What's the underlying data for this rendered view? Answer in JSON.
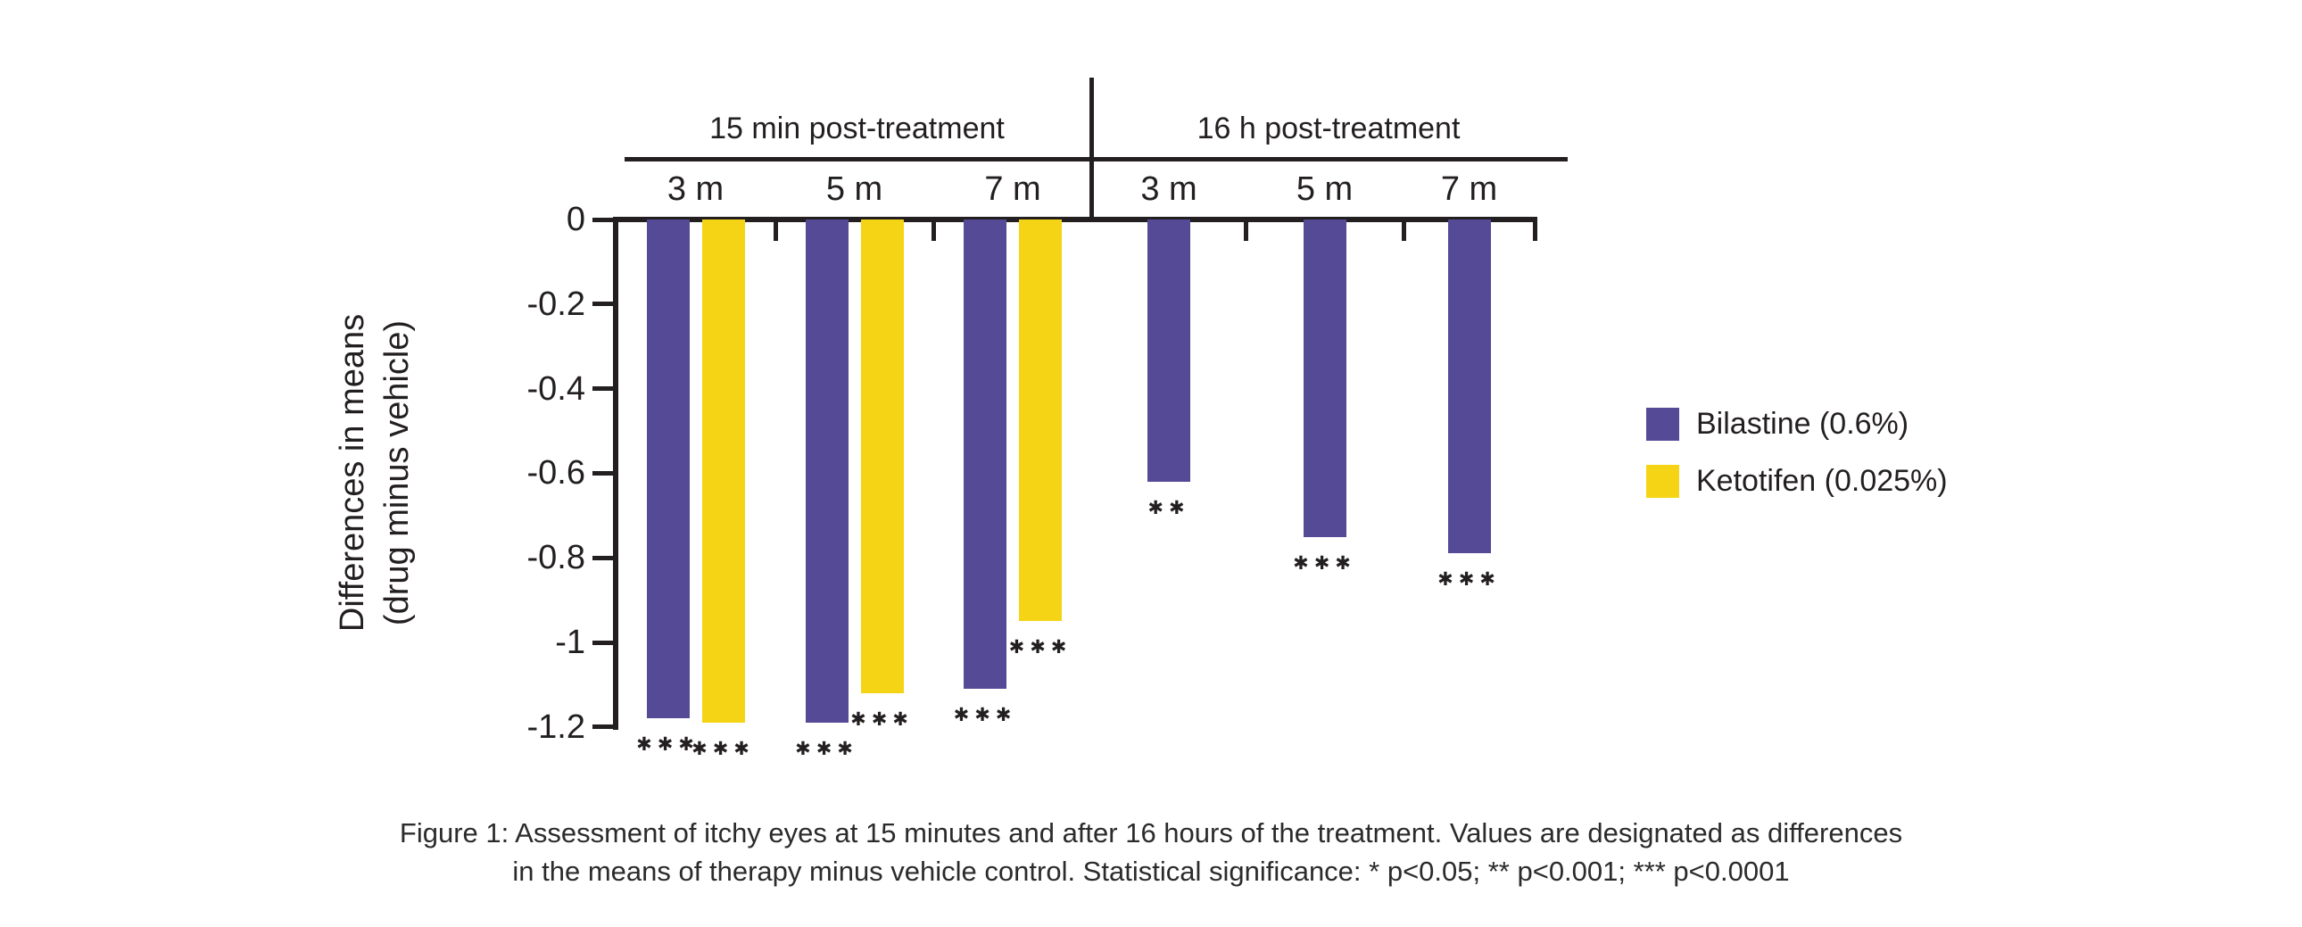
{
  "colors": {
    "bilastine": "#554A96",
    "ketotifen": "#F5D416",
    "axis": "#231f20",
    "text": "#2b2b2b"
  },
  "ylabel": {
    "line1": "Differences in means",
    "line2": "(drug minus vehicle)"
  },
  "legend": {
    "items": [
      {
        "label": "Bilastine (0.6%)",
        "color_key": "bilastine"
      },
      {
        "label": "Ketotifen (0.025%)",
        "color_key": "ketotifen"
      }
    ]
  },
  "caption": {
    "line1": "Figure 1: Assessment of itchy eyes at 15 minutes and after 16 hours of the treatment. Values are designated as differences",
    "line2": "in the means of therapy minus vehicle control. Statistical significance: * p<0.05; ** p<0.001; *** p<0.0001"
  },
  "chart_data": {
    "type": "bar",
    "title": "",
    "ylabel": "Differences in means (drug minus vehicle)",
    "ylim": [
      0,
      -1.2
    ],
    "yticks": [
      0,
      -0.2,
      -0.4,
      -0.6,
      -0.8,
      -1,
      -1.2
    ],
    "ytick_labels": [
      "0",
      "-0.2",
      "-0.4",
      "-0.6",
      "-0.8",
      "-1",
      "-1.2"
    ],
    "grid": false,
    "legend_position": "right",
    "groups": [
      {
        "label": "15 min post-treatment",
        "categories": [
          "3 m",
          "5 m",
          "7 m"
        ],
        "series": [
          {
            "name": "Bilastine (0.6%)",
            "color_key": "bilastine",
            "values": [
              -1.18,
              -1.19,
              -1.11
            ],
            "significance": [
              "***",
              "***",
              "***"
            ]
          },
          {
            "name": "Ketotifen (0.025%)",
            "color_key": "ketotifen",
            "values": [
              -1.19,
              -1.12,
              -0.95
            ],
            "significance": [
              "***",
              "***",
              "***"
            ]
          }
        ]
      },
      {
        "label": "16 h post-treatment",
        "categories": [
          "3 m",
          "5 m",
          "7 m"
        ],
        "series": [
          {
            "name": "Bilastine (0.6%)",
            "color_key": "bilastine",
            "values": [
              -0.62,
              -0.75,
              -0.79
            ],
            "significance": [
              "**",
              "***",
              "***"
            ]
          }
        ]
      }
    ]
  }
}
